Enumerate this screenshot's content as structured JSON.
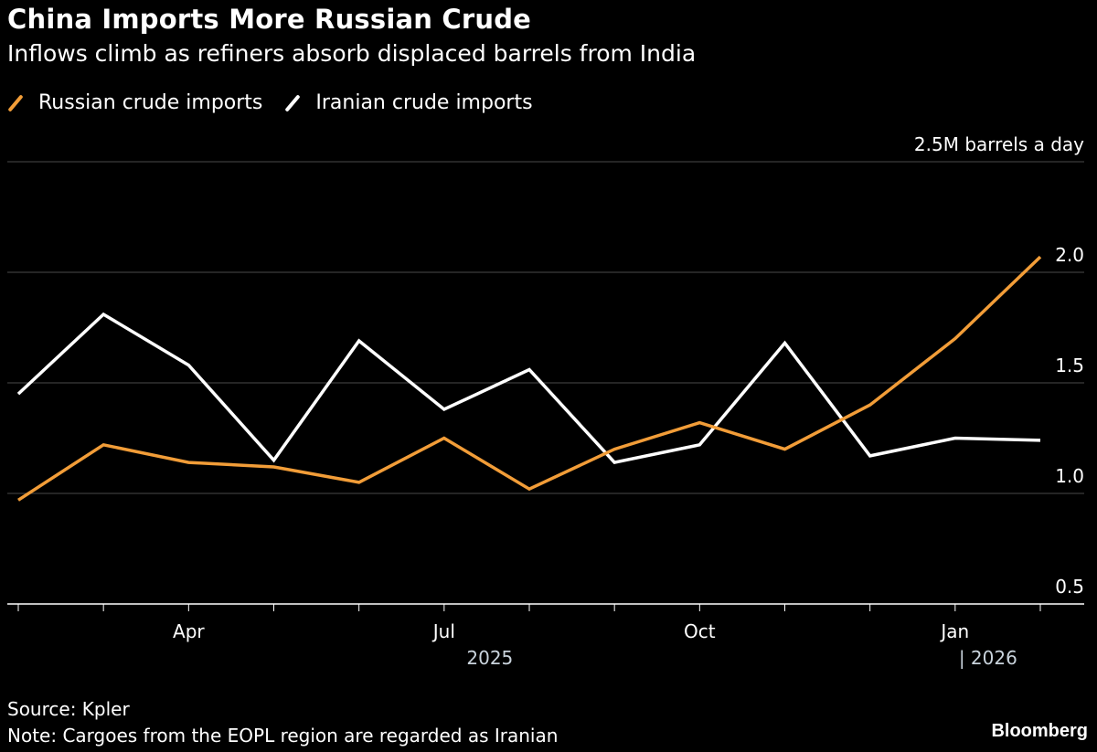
{
  "header": {
    "title": "China Imports More Russian Crude",
    "subtitle": "Inflows climb as refiners absorb displaced barrels from India"
  },
  "legend": [
    {
      "label": "Russian crude imports",
      "color": "#f29d38"
    },
    {
      "label": "Iranian crude imports",
      "color": "#ffffff"
    }
  ],
  "colors": {
    "russian": "#f29d38",
    "iranian": "#ffffff",
    "grid": "#4a4a4a",
    "axis": "#ffffff"
  },
  "chart_data": {
    "type": "line",
    "title": "China Imports More Russian Crude",
    "subtitle": "Inflows climb as refiners absorb displaced barrels from India",
    "unit_label": "2.5M barrels a day",
    "x": [
      "2025-02",
      "2025-03",
      "2025-04",
      "2025-05",
      "2025-06",
      "2025-07",
      "2025-08",
      "2025-09",
      "2025-10",
      "2025-11",
      "2025-12",
      "2026-01",
      "2026-02"
    ],
    "series": [
      {
        "name": "Russian crude imports",
        "values": [
          0.97,
          1.22,
          1.14,
          1.12,
          1.05,
          1.25,
          1.02,
          1.2,
          1.32,
          1.2,
          1.4,
          1.7,
          2.07
        ]
      },
      {
        "name": "Iranian crude imports",
        "values": [
          1.45,
          1.81,
          1.58,
          1.15,
          1.69,
          1.38,
          1.56,
          1.14,
          1.22,
          1.68,
          1.17,
          1.25,
          1.24
        ]
      }
    ],
    "yticks": [
      {
        "value": 0.5,
        "label": "0.5"
      },
      {
        "value": 1.0,
        "label": "1.0"
      },
      {
        "value": 1.5,
        "label": "1.5"
      },
      {
        "value": 2.0,
        "label": "2.0"
      },
      {
        "value": 2.5,
        "label": "2.5M barrels a day"
      }
    ],
    "ylim": [
      0.5,
      2.5
    ],
    "xtick_labels": [
      {
        "index": 2,
        "label": "Apr"
      },
      {
        "index": 5,
        "label": "Jul"
      },
      {
        "index": 8,
        "label": "Oct"
      },
      {
        "index": 11,
        "label": "Jan"
      }
    ],
    "year_labels": [
      {
        "index": 5,
        "label": "2025"
      },
      {
        "index": 11,
        "label": "| 2026"
      }
    ]
  },
  "footer": {
    "source": "Source: Kpler",
    "note": "Note: Cargoes from the EOPL region are regarded as Iranian",
    "brand": "Bloomberg"
  }
}
